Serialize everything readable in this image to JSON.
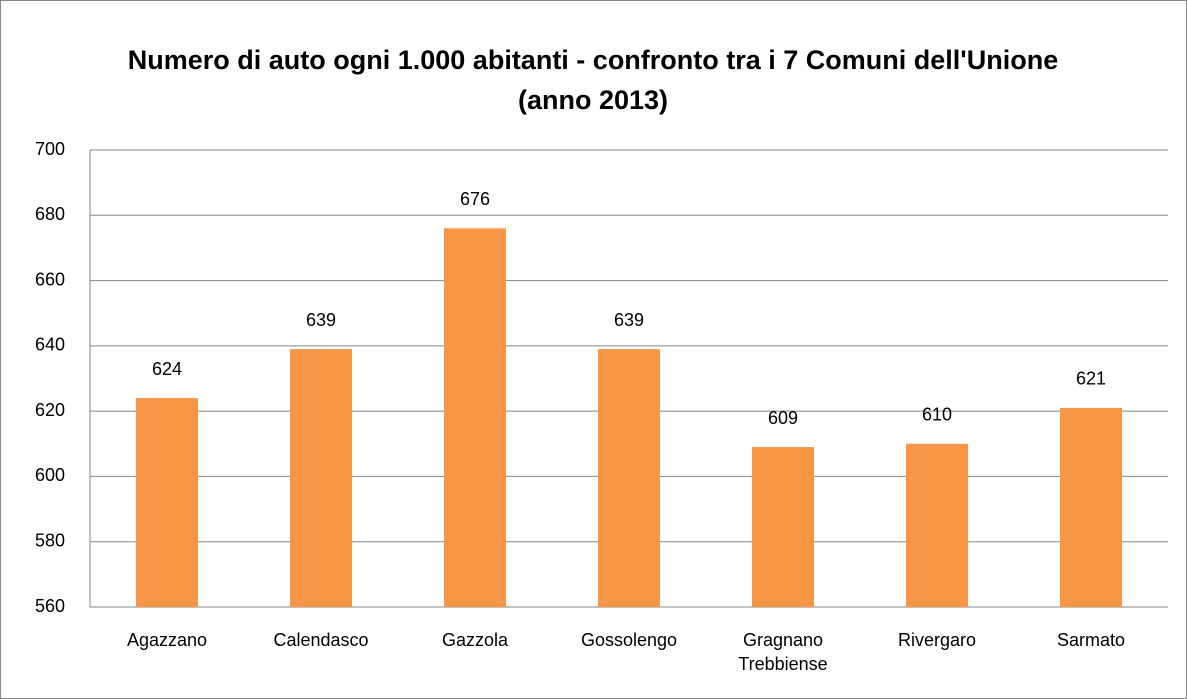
{
  "chart_data": {
    "type": "bar",
    "title": "Numero di auto ogni 1.000 abitanti - confronto tra i 7 Comuni dell'Unione (anno 2013)",
    "categories": [
      "Agazzano",
      "Calendasco",
      "Gazzola",
      "Gossolengo",
      "Gragnano Trebbiense",
      "Rivergaro",
      "Sarmato"
    ],
    "values": [
      624,
      639,
      676,
      639,
      609,
      610,
      621
    ],
    "color": "#f79646",
    "ylim": [
      560,
      700
    ],
    "yticks": [
      560,
      580,
      600,
      620,
      640,
      660,
      680,
      700
    ],
    "grid": true
  }
}
